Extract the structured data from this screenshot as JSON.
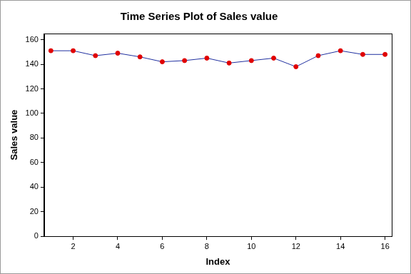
{
  "chart_data": {
    "type": "line",
    "title": "Time Series Plot of Sales value",
    "x_label": "Index",
    "y_label": "Sales value",
    "x": [
      1,
      2,
      3,
      4,
      5,
      6,
      7,
      8,
      9,
      10,
      11,
      12,
      13,
      14,
      15,
      16
    ],
    "series": [
      {
        "name": "Sales value",
        "color": "#1f2f9f",
        "marker": "circle",
        "line_style": "solid",
        "values": [
          151,
          151,
          147,
          149,
          146,
          142,
          143,
          145,
          141,
          143,
          145,
          138,
          147,
          151,
          148,
          148
        ]
      }
    ],
    "xlim": [
      0.7,
      16.3
    ],
    "xticks": [
      2,
      4,
      6,
      8,
      10,
      12,
      14,
      16
    ],
    "ylim": [
      0,
      165
    ],
    "yticks": [
      0,
      20,
      40,
      60,
      80,
      100,
      120,
      140,
      160
    ],
    "grid": false
  }
}
